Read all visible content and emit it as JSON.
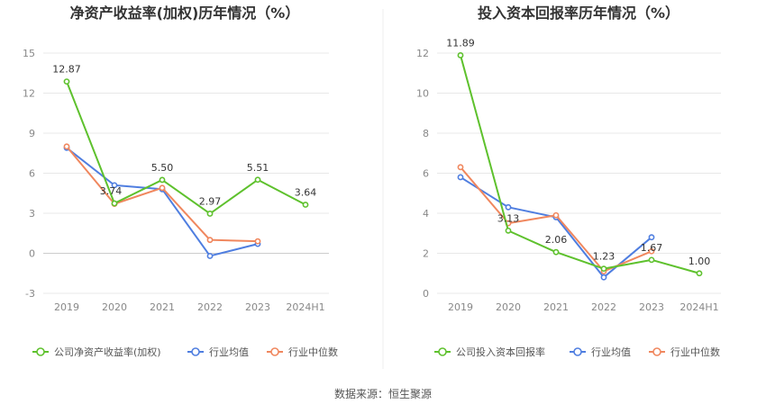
{
  "colors": {
    "company": "#5ec12d",
    "industry_avg": "#4f7ee0",
    "industry_median": "#f0875e",
    "grid": "#e8e8e8"
  },
  "source": "数据来源：恒生聚源",
  "chart_data": [
    {
      "type": "line",
      "title": "净资产收益率(加权)历年情况（%）",
      "categories": [
        "2019",
        "2020",
        "2021",
        "2022",
        "2023",
        "2024H1"
      ],
      "ylim": [
        -3,
        15
      ],
      "yticks": [
        -3,
        0,
        3,
        6,
        9,
        12,
        15
      ],
      "grid": true,
      "legend_position": "bottom",
      "series": [
        {
          "name": "公司净资产收益率(加权)",
          "color_key": "company",
          "values": [
            12.87,
            3.74,
            5.5,
            2.97,
            5.51,
            3.64
          ],
          "labels": [
            "12.87",
            "3.74",
            "5.50",
            "2.97",
            "5.51",
            "3.64"
          ]
        },
        {
          "name": "行业均值",
          "color_key": "industry_avg",
          "values": [
            7.9,
            5.1,
            4.8,
            -0.2,
            0.7,
            null
          ]
        },
        {
          "name": "行业中位数",
          "color_key": "industry_median",
          "values": [
            8.0,
            3.7,
            4.9,
            1.0,
            0.9,
            null
          ]
        }
      ]
    },
    {
      "type": "line",
      "title": "投入资本回报率历年情况（%）",
      "categories": [
        "2019",
        "2020",
        "2021",
        "2022",
        "2023",
        "2024H1"
      ],
      "ylim": [
        0,
        12
      ],
      "yticks": [
        0,
        2,
        4,
        6,
        8,
        10,
        12
      ],
      "grid": true,
      "legend_position": "bottom",
      "series": [
        {
          "name": "公司投入资本回报率",
          "color_key": "company",
          "values": [
            11.89,
            3.13,
            2.06,
            1.23,
            1.67,
            1.0
          ],
          "labels": [
            "11.89",
            "3.13",
            "2.06",
            "1.23",
            "1.67",
            "1.00"
          ]
        },
        {
          "name": "行业均值",
          "color_key": "industry_avg",
          "values": [
            5.8,
            4.3,
            3.8,
            0.8,
            2.8,
            null
          ]
        },
        {
          "name": "行业中位数",
          "color_key": "industry_median",
          "values": [
            6.3,
            3.5,
            3.9,
            1.1,
            2.1,
            null
          ]
        }
      ]
    }
  ]
}
